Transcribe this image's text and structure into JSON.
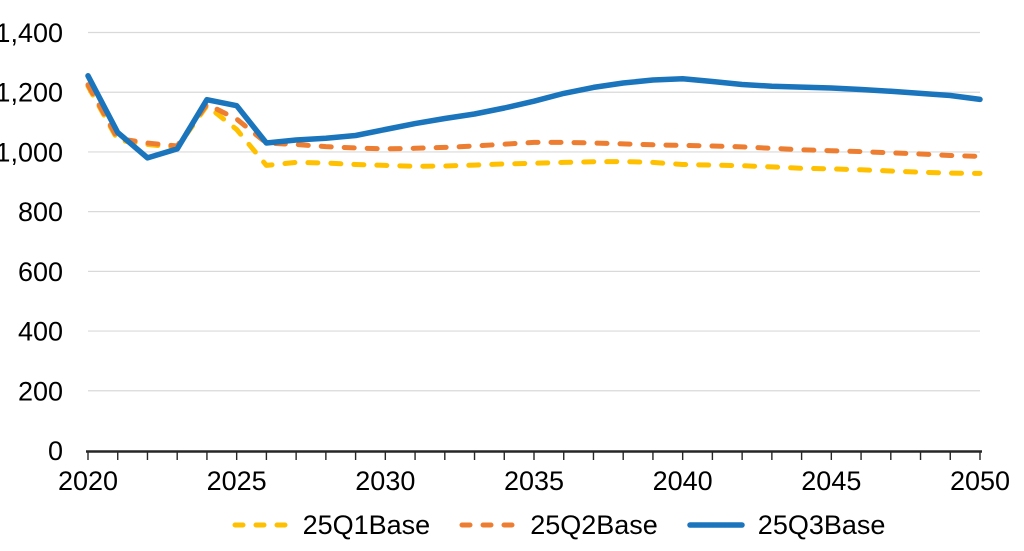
{
  "chart_data": {
    "type": "line",
    "title": "",
    "xlabel": "",
    "ylabel": "",
    "x": [
      2020,
      2021,
      2022,
      2023,
      2024,
      2025,
      2026,
      2027,
      2028,
      2029,
      2030,
      2031,
      2032,
      2033,
      2034,
      2035,
      2036,
      2037,
      2038,
      2039,
      2040,
      2041,
      2042,
      2043,
      2044,
      2045,
      2046,
      2047,
      2048,
      2049,
      2050
    ],
    "xticks": [
      2020,
      2025,
      2030,
      2035,
      2040,
      2045,
      2050
    ],
    "ylim": [
      0,
      1400
    ],
    "ytick_step": 200,
    "y_tick_labels": [
      "0",
      "200",
      "400",
      "600",
      "800",
      "1,000",
      "1,200",
      "1,400"
    ],
    "grid": "horizontal",
    "legend_position": "bottom-center",
    "colors": {
      "axis": "#262626",
      "grid": "#D9D9D9",
      "text": "#000000",
      "background": "#FFFFFF"
    },
    "series": [
      {
        "name": "25Q1Base",
        "color": "#FFC000",
        "style": "dashed",
        "width": 5,
        "values": [
          1220,
          1040,
          1025,
          1015,
          1155,
          1075,
          955,
          965,
          963,
          958,
          955,
          952,
          953,
          956,
          960,
          962,
          965,
          967,
          968,
          965,
          958,
          956,
          954,
          950,
          945,
          943,
          940,
          936,
          932,
          929,
          928
        ]
      },
      {
        "name": "25Q2Base",
        "color": "#ED7D31",
        "style": "dashed",
        "width": 5,
        "values": [
          1225,
          1045,
          1030,
          1020,
          1160,
          1110,
          1030,
          1025,
          1018,
          1013,
          1010,
          1012,
          1015,
          1020,
          1026,
          1032,
          1032,
          1030,
          1027,
          1024,
          1022,
          1020,
          1017,
          1012,
          1007,
          1004,
          1001,
          997,
          993,
          988,
          985
        ]
      },
      {
        "name": "25Q3Base",
        "color": "#1B75BC",
        "style": "solid",
        "width": 5.5,
        "values": [
          1255,
          1065,
          980,
          1010,
          1175,
          1155,
          1030,
          1040,
          1046,
          1055,
          1075,
          1095,
          1112,
          1127,
          1147,
          1170,
          1196,
          1216,
          1231,
          1241,
          1245,
          1236,
          1226,
          1220,
          1217,
          1214,
          1209,
          1203,
          1196,
          1189,
          1176
        ]
      }
    ]
  }
}
